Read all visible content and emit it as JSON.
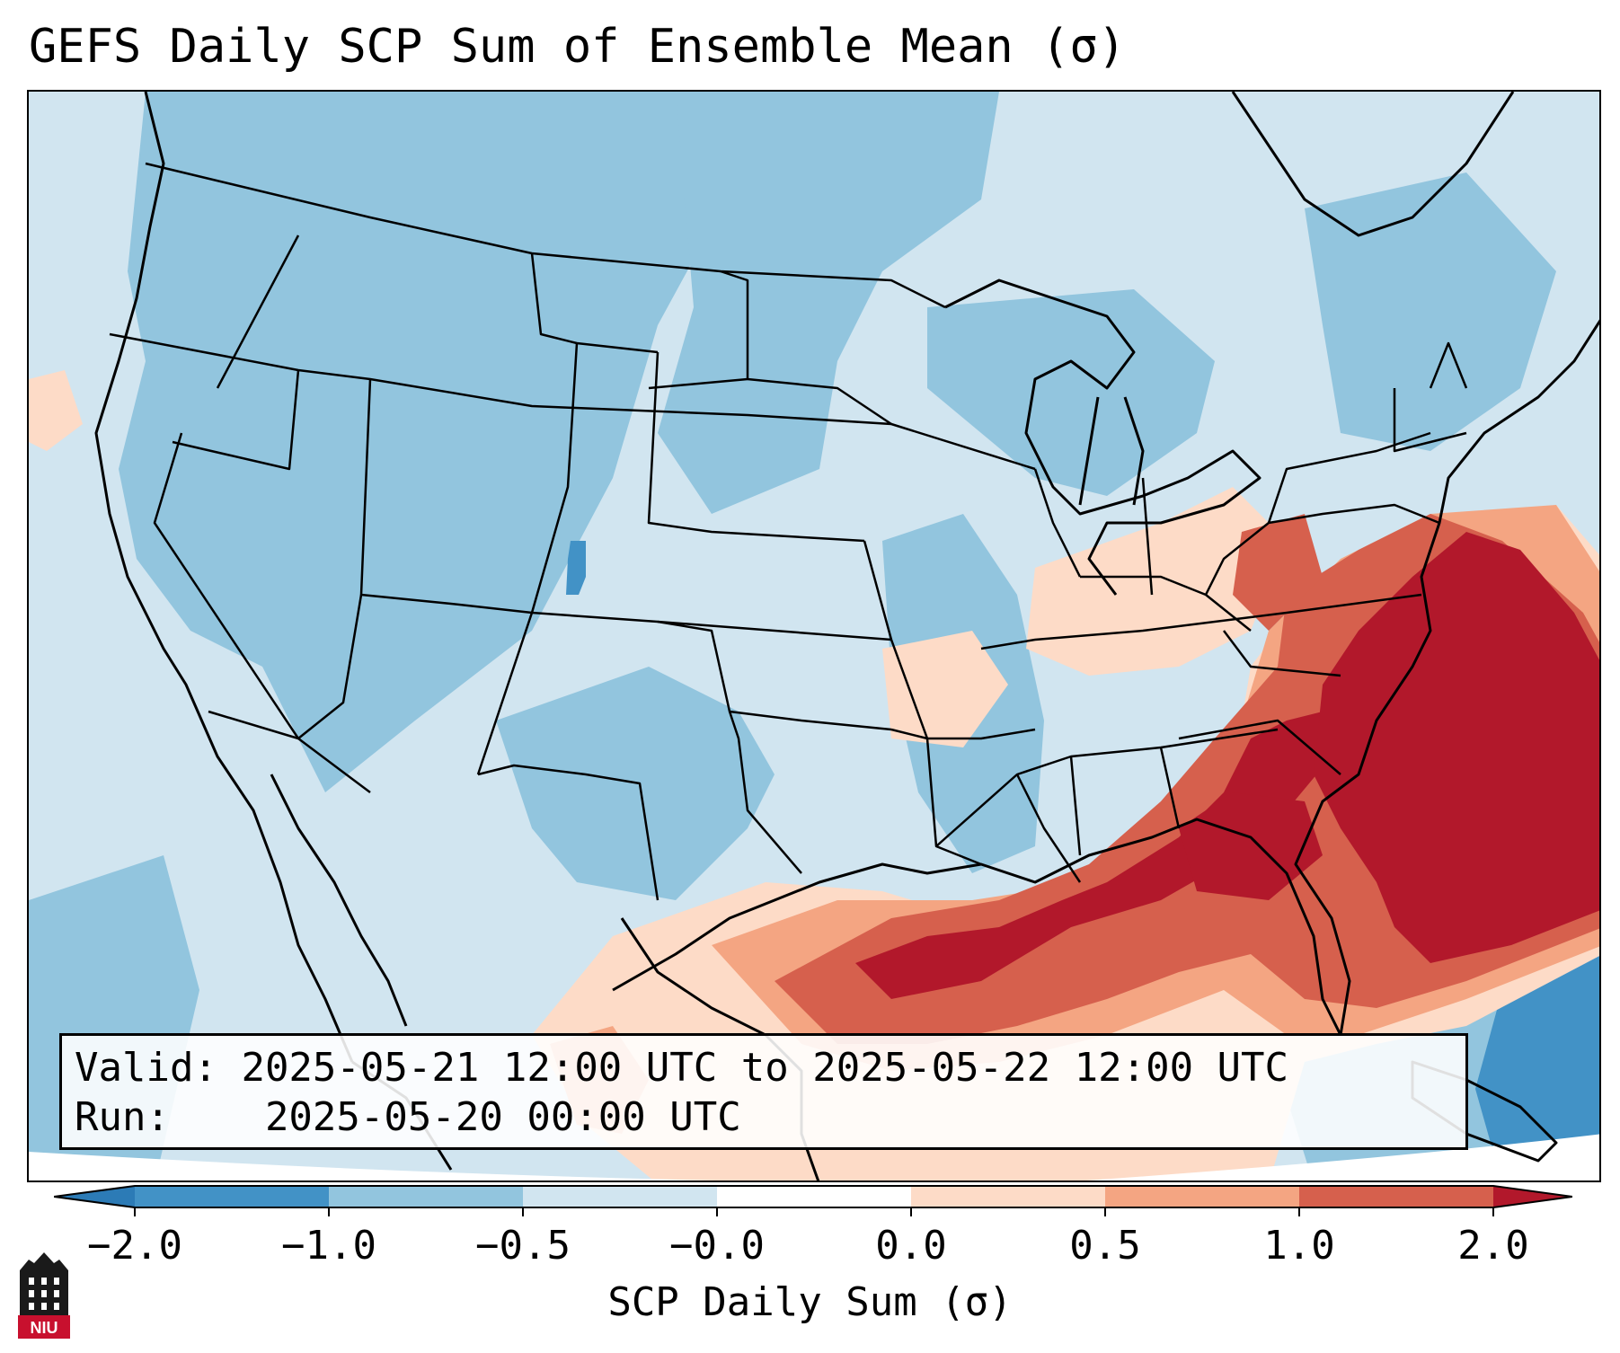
{
  "title": "GEFS Daily SCP Sum of Ensemble Mean (σ)",
  "info": {
    "valid_label": "Valid:",
    "valid_value": "2025-05-21 12:00 UTC to 2025-05-22 12:00 UTC",
    "run_label": "Run:",
    "run_value": "2025-05-20 00:00 UTC"
  },
  "colorbar": {
    "label": "SCP Daily Sum (σ)",
    "ticks": [
      "−2.0",
      "−1.0",
      "−0.5",
      "−0.0",
      "0.0",
      "0.5",
      "1.0",
      "2.0"
    ],
    "bins": [
      {
        "from": "<-2.0",
        "color": "#2c7bb6"
      },
      {
        "from": "-2.0 to -1.0",
        "color": "#4292c6"
      },
      {
        "from": "-1.0 to -0.5",
        "color": "#92c5de"
      },
      {
        "from": "-0.5 to -0.0",
        "color": "#d1e5f0"
      },
      {
        "from": "-0.0 to 0.0",
        "color": "#ffffff"
      },
      {
        "from": "0.0 to 0.5",
        "color": "#fddbc7"
      },
      {
        "from": "0.5 to 1.0",
        "color": "#f4a582"
      },
      {
        "from": "1.0 to 2.0",
        "color": "#d6604d"
      },
      {
        "from": ">2.0",
        "color": "#b2182b"
      }
    ]
  },
  "map": {
    "region": "CONUS",
    "features": [
      "state borders",
      "coastlines",
      "great lakes"
    ],
    "field_description_colors": {
      "below": "#92c5de",
      "slightly_below": "#d1e5f0",
      "strong_below": "#4292c6",
      "slightly_above": "#fddbc7",
      "above": "#f4a582",
      "high": "#d6604d",
      "very_high": "#b2182b"
    }
  },
  "logo": {
    "text": "NIU",
    "color": "#c8102e"
  }
}
